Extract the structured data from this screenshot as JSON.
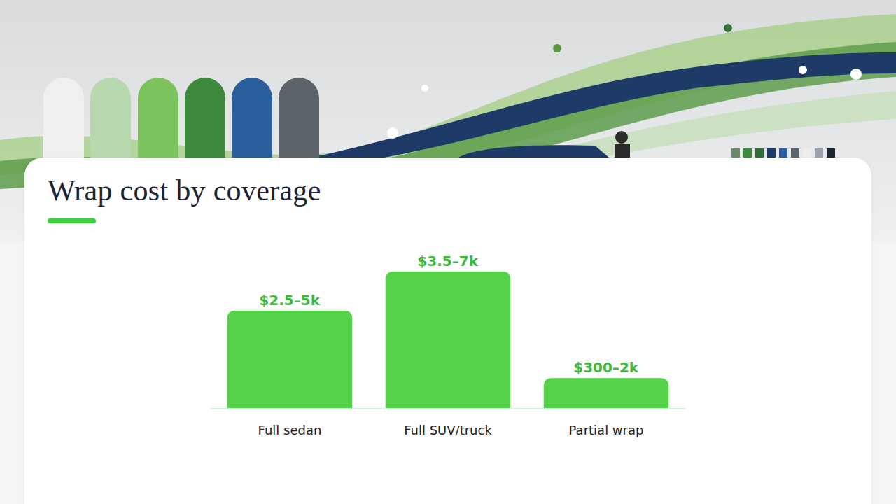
{
  "chart_data": {
    "type": "bar",
    "title": "Wrap cost by coverage",
    "categories": [
      "Full sedan",
      "Full SUV/truck",
      "Partial wrap"
    ],
    "values": [
      3750,
      5250,
      1150
    ],
    "value_labels": [
      "$2.5–5k",
      "$3.5–7k",
      "$300–2k"
    ],
    "color": "#55d24a",
    "ylim": [
      0,
      6000
    ],
    "data_labels": true,
    "tick_labels": "x",
    "grid": false
  }
}
